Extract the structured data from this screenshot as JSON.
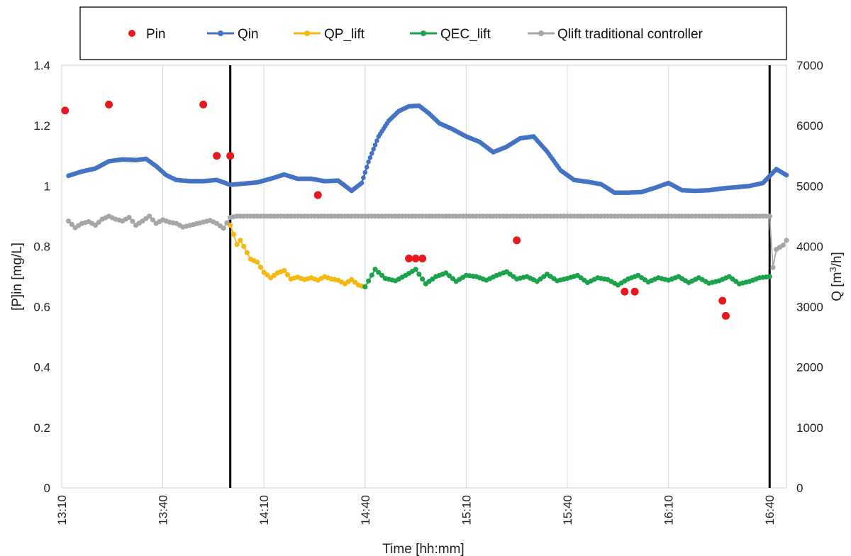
{
  "chart_data": {
    "type": "scatter",
    "xlabel": "Time [hh:mm]",
    "ylabel_left": "[P]in [mg/L]",
    "ylabel_right_base": "Q [m",
    "ylabel_right_sup": "3",
    "ylabel_right_tail": "/h]",
    "x_range_minutes": [
      790,
      1005
    ],
    "x_ticks": [
      {
        "minute": 790,
        "label": "13:10"
      },
      {
        "minute": 820,
        "label": "13:40"
      },
      {
        "minute": 850,
        "label": "14:10"
      },
      {
        "minute": 880,
        "label": "14:40"
      },
      {
        "minute": 910,
        "label": "15:10"
      },
      {
        "minute": 940,
        "label": "15:40"
      },
      {
        "minute": 970,
        "label": "16:10"
      },
      {
        "minute": 1000,
        "label": "16:40"
      }
    ],
    "y_left": {
      "min": 0,
      "max": 1.4,
      "ticks": [
        "0",
        "0.2",
        "0.4",
        "0.6",
        "0.8",
        "1",
        "1.2",
        "1.4"
      ]
    },
    "y_right": {
      "min": 0,
      "max": 7000,
      "ticks": [
        "0",
        "1000",
        "2000",
        "3000",
        "4000",
        "5000",
        "6000",
        "7000"
      ]
    },
    "grid": "vertical",
    "legend_position": "top",
    "vertical_markers_minutes": [
      840,
      1000
    ],
    "series": [
      {
        "name": "Pin",
        "axis": "left",
        "color": "#e8191c",
        "style": "points",
        "points": [
          [
            791,
            1.25
          ],
          [
            804,
            1.27
          ],
          [
            832,
            1.27
          ],
          [
            836,
            1.1
          ],
          [
            840,
            1.1
          ],
          [
            866,
            0.97
          ],
          [
            893,
            0.76
          ],
          [
            895,
            0.76
          ],
          [
            897,
            0.76
          ],
          [
            925,
            0.82
          ],
          [
            957,
            0.65
          ],
          [
            960,
            0.65
          ],
          [
            986,
            0.62
          ],
          [
            987,
            0.57
          ]
        ]
      },
      {
        "name": "Qin",
        "axis": "right",
        "color": "#4472c4",
        "style": "dense-line",
        "points": [
          [
            792,
            5170
          ],
          [
            796,
            5240
          ],
          [
            800,
            5290
          ],
          [
            804,
            5410
          ],
          [
            808,
            5440
          ],
          [
            812,
            5430
          ],
          [
            815,
            5450
          ],
          [
            818,
            5330
          ],
          [
            821,
            5180
          ],
          [
            824,
            5100
          ],
          [
            828,
            5080
          ],
          [
            832,
            5080
          ],
          [
            836,
            5100
          ],
          [
            840,
            5020
          ],
          [
            844,
            5040
          ],
          [
            848,
            5060
          ],
          [
            852,
            5120
          ],
          [
            856,
            5190
          ],
          [
            860,
            5120
          ],
          [
            864,
            5120
          ],
          [
            868,
            5080
          ],
          [
            872,
            5090
          ],
          [
            876,
            4920
          ],
          [
            879,
            5050
          ],
          [
            881,
            5400
          ],
          [
            884,
            5820
          ],
          [
            887,
            6080
          ],
          [
            890,
            6240
          ],
          [
            893,
            6320
          ],
          [
            896,
            6330
          ],
          [
            899,
            6200
          ],
          [
            902,
            6040
          ],
          [
            906,
            5940
          ],
          [
            910,
            5820
          ],
          [
            914,
            5730
          ],
          [
            918,
            5560
          ],
          [
            922,
            5650
          ],
          [
            926,
            5790
          ],
          [
            930,
            5820
          ],
          [
            934,
            5570
          ],
          [
            938,
            5260
          ],
          [
            942,
            5100
          ],
          [
            946,
            5070
          ],
          [
            950,
            5030
          ],
          [
            954,
            4890
          ],
          [
            958,
            4890
          ],
          [
            962,
            4900
          ],
          [
            966,
            4970
          ],
          [
            970,
            5050
          ],
          [
            974,
            4930
          ],
          [
            978,
            4920
          ],
          [
            982,
            4930
          ],
          [
            986,
            4960
          ],
          [
            990,
            4980
          ],
          [
            994,
            5000
          ],
          [
            998,
            5050
          ],
          [
            1002,
            5280
          ],
          [
            1005,
            5180
          ]
        ]
      },
      {
        "name": "QP_lift",
        "axis": "right",
        "color": "#f5b90f",
        "style": "scatter-line",
        "points": [
          [
            840,
            4350
          ],
          [
            841,
            4200
          ],
          [
            842,
            4030
          ],
          [
            843,
            4100
          ],
          [
            844,
            4000
          ],
          [
            846,
            3790
          ],
          [
            848,
            3740
          ],
          [
            850,
            3570
          ],
          [
            852,
            3480
          ],
          [
            854,
            3560
          ],
          [
            856,
            3600
          ],
          [
            858,
            3460
          ],
          [
            860,
            3490
          ],
          [
            862,
            3450
          ],
          [
            864,
            3480
          ],
          [
            866,
            3440
          ],
          [
            868,
            3500
          ],
          [
            870,
            3460
          ],
          [
            872,
            3440
          ],
          [
            874,
            3380
          ],
          [
            876,
            3450
          ],
          [
            878,
            3360
          ],
          [
            880,
            3330
          ]
        ]
      },
      {
        "name": "QEC_lift",
        "axis": "right",
        "color": "#1aa34a",
        "style": "scatter-line",
        "points": [
          [
            880,
            3330
          ],
          [
            883,
            3620
          ],
          [
            886,
            3470
          ],
          [
            889,
            3430
          ],
          [
            892,
            3520
          ],
          [
            895,
            3620
          ],
          [
            898,
            3380
          ],
          [
            901,
            3500
          ],
          [
            904,
            3560
          ],
          [
            907,
            3420
          ],
          [
            910,
            3520
          ],
          [
            913,
            3500
          ],
          [
            916,
            3440
          ],
          [
            919,
            3520
          ],
          [
            922,
            3580
          ],
          [
            925,
            3460
          ],
          [
            928,
            3500
          ],
          [
            931,
            3420
          ],
          [
            934,
            3540
          ],
          [
            937,
            3430
          ],
          [
            940,
            3470
          ],
          [
            943,
            3520
          ],
          [
            946,
            3400
          ],
          [
            949,
            3480
          ],
          [
            952,
            3450
          ],
          [
            955,
            3360
          ],
          [
            958,
            3460
          ],
          [
            961,
            3520
          ],
          [
            964,
            3410
          ],
          [
            967,
            3480
          ],
          [
            970,
            3440
          ],
          [
            973,
            3500
          ],
          [
            976,
            3400
          ],
          [
            979,
            3480
          ],
          [
            982,
            3390
          ],
          [
            985,
            3430
          ],
          [
            988,
            3500
          ],
          [
            991,
            3380
          ],
          [
            994,
            3420
          ],
          [
            997,
            3480
          ],
          [
            1000,
            3500
          ]
        ]
      },
      {
        "name": "Qlift traditional controller",
        "axis": "right",
        "color": "#a6a6a6",
        "style": "scatter-line",
        "points": [
          [
            792,
            4420
          ],
          [
            794,
            4310
          ],
          [
            796,
            4380
          ],
          [
            798,
            4410
          ],
          [
            800,
            4350
          ],
          [
            802,
            4450
          ],
          [
            804,
            4500
          ],
          [
            806,
            4450
          ],
          [
            808,
            4420
          ],
          [
            810,
            4480
          ],
          [
            812,
            4350
          ],
          [
            814,
            4420
          ],
          [
            816,
            4500
          ],
          [
            818,
            4380
          ],
          [
            820,
            4440
          ],
          [
            822,
            4400
          ],
          [
            824,
            4380
          ],
          [
            826,
            4320
          ],
          [
            834,
            4430
          ],
          [
            836,
            4380
          ],
          [
            838,
            4300
          ],
          [
            840,
            4480
          ],
          [
            842,
            4500
          ],
          [
            880,
            4500
          ],
          [
            920,
            4500
          ],
          [
            960,
            4500
          ],
          [
            1000,
            4500
          ],
          [
            1001,
            3650
          ],
          [
            1002,
            3950
          ],
          [
            1004,
            4020
          ],
          [
            1005,
            4100
          ]
        ]
      }
    ]
  }
}
